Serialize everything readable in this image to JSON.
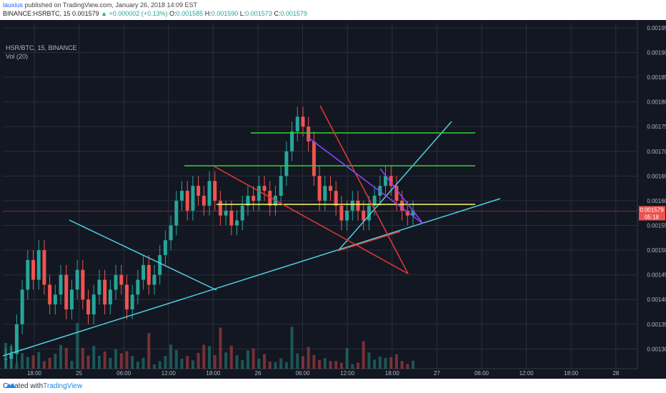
{
  "header": {
    "username": "lauxius",
    "published_text": "published on TradingView.com, January 26, 2018 14:09 EST",
    "symbol_info": "BINANCE:HSRBTC, 15",
    "last": "0.001579",
    "change": "▲ +0.000002 (+0.13%)",
    "open_label": "O:",
    "open": "0.001585",
    "high_label": "H:",
    "high": "0.001590",
    "low_label": "L:",
    "low": "0.001573",
    "close_label": "C:",
    "close": "0.001579"
  },
  "legend": {
    "ticker": "HSR/BTC, 15, BINANCE",
    "volume": "Vol (20)"
  },
  "footer": {
    "created_with": "Created with",
    "brand": "TradingView"
  },
  "chart_data": {
    "type": "candlestick",
    "yrange": [
      0.00126,
      0.00196
    ],
    "y_ticks": [
      "0.001950",
      "0.001900",
      "0.001850",
      "0.001800",
      "0.001750",
      "0.001700",
      "0.001650",
      "0.001600",
      "0.001550",
      "0.001500",
      "0.001450",
      "0.001400",
      "0.001350",
      "0.001300"
    ],
    "x_ticks": [
      "18:00",
      "25",
      "06:00",
      "12:00",
      "18:00",
      "26",
      "06:00",
      "12:00",
      "18:00",
      "27",
      "06:00",
      "12:00",
      "18:00",
      "28"
    ],
    "last_price_label": "0.001579",
    "countdown_label": "05:18",
    "colors": {
      "up": "#26a69a",
      "down": "#ef5350",
      "bg": "#131722",
      "grid": "#2a2e39",
      "axis_text": "#b2b5be",
      "cyan": "#4dd0e1",
      "green": "#33d633",
      "yellow": "#ffff66",
      "red": "#e53935",
      "purple": "#8e44ff",
      "price_line": "#ef5350"
    },
    "approx_closes": [
      0.00128,
      0.00129,
      0.00135,
      0.00142,
      0.00148,
      0.00144,
      0.0015,
      0.00143,
      0.00139,
      0.00141,
      0.00145,
      0.00138,
      0.00142,
      0.00146,
      0.0014,
      0.00137,
      0.00141,
      0.00144,
      0.00139,
      0.00142,
      0.00145,
      0.00143,
      0.00138,
      0.00141,
      0.00144,
      0.00147,
      0.00143,
      0.00145,
      0.00149,
      0.00152,
      0.00155,
      0.0016,
      0.00162,
      0.00158,
      0.00163,
      0.00161,
      0.00159,
      0.00164,
      0.0016,
      0.00157,
      0.00158,
      0.00155,
      0.00156,
      0.00159,
      0.00161,
      0.0016,
      0.00163,
      0.00162,
      0.00159,
      0.00161,
      0.00165,
      0.0017,
      0.00174,
      0.00177,
      0.00175,
      0.00172,
      0.00165,
      0.0016,
      0.00163,
      0.00162,
      0.00159,
      0.00156,
      0.00158,
      0.0016,
      0.00158,
      0.00156,
      0.00159,
      0.00161,
      0.00163,
      0.00165,
      0.00163,
      0.0016,
      0.00158,
      0.00157,
      0.00158
    ]
  }
}
